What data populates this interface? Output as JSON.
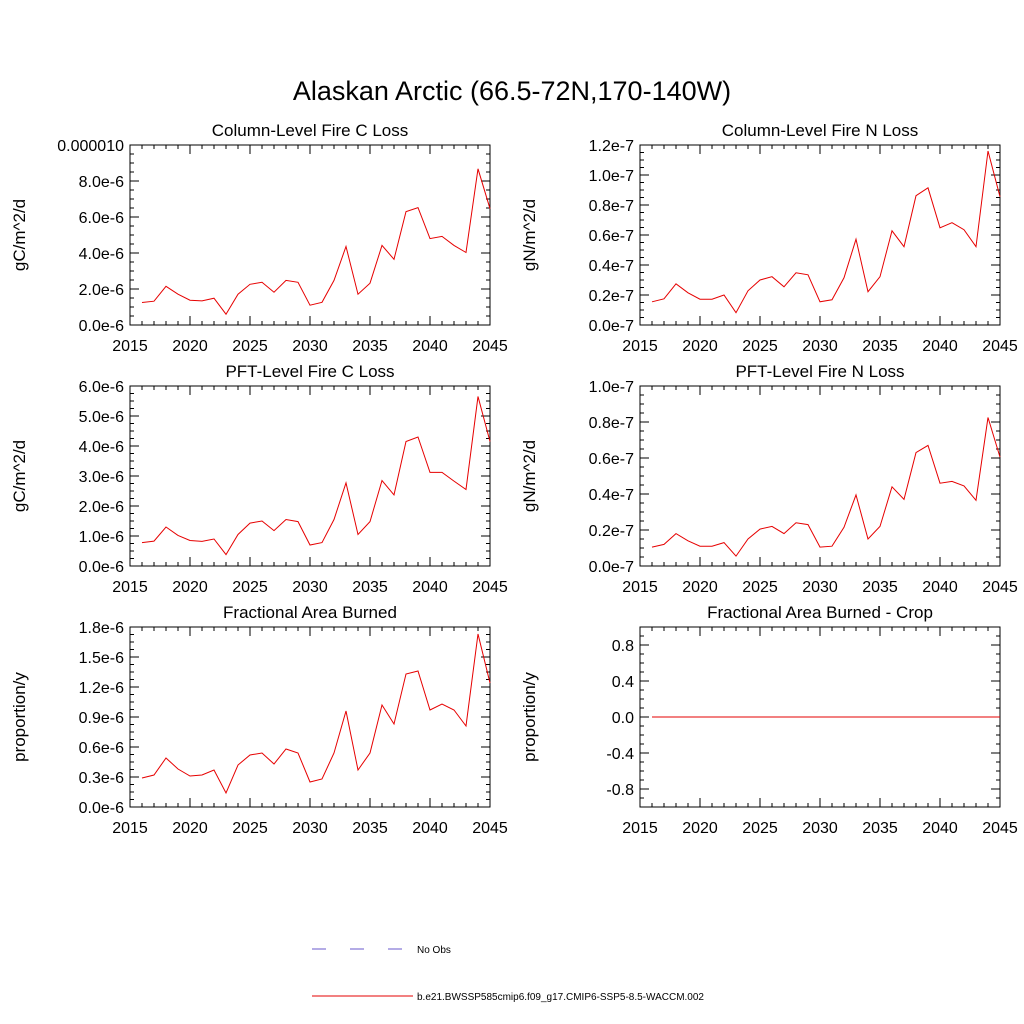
{
  "figure_title": "Alaskan Arctic (66.5-72N,170-140W)",
  "colors": {
    "model_line": "#e60000",
    "obs_line": "#6a5acd",
    "axis": "#000000"
  },
  "legend": {
    "obs_label": "No Obs",
    "model_label": "b.e21.BWSSP585cmip6.f09_g17.CMIP6-SSP5-8.5-WACCM.002"
  },
  "chart_data": [
    {
      "id": "col-c",
      "type": "line",
      "title": "Column-Level Fire C Loss",
      "ylabel": "gC/m^2/d",
      "xlim": [
        2015,
        2045
      ],
      "ylim": [
        0,
        1e-05
      ],
      "xticks": [
        2015,
        2020,
        2025,
        2030,
        2035,
        2040,
        2045
      ],
      "yticks": [
        0,
        2e-06,
        4e-06,
        6e-06,
        8e-06,
        1e-05
      ],
      "yticklabels": [
        "0.0e-6",
        "2.0e-6",
        "4.0e-6",
        "6.0e-6",
        "8.0e-6",
        "0.000010"
      ],
      "series": [
        {
          "name": "b.e21.BWSSP585cmip6.f09_g17.CMIP6-SSP5-8.5-WACCM.002",
          "x": [
            2016,
            2017,
            2018,
            2019,
            2020,
            2021,
            2022,
            2023,
            2024,
            2025,
            2026,
            2027,
            2028,
            2029,
            2030,
            2031,
            2032,
            2033,
            2034,
            2035,
            2036,
            2037,
            2038,
            2039,
            2040,
            2041,
            2042,
            2043,
            2044,
            2045
          ],
          "y": [
            1.25e-06,
            1.32e-06,
            2.15e-06,
            1.71e-06,
            1.38e-06,
            1.34e-06,
            1.49e-06,
            6e-07,
            1.71e-06,
            2.26e-06,
            2.37e-06,
            1.82e-06,
            2.48e-06,
            2.37e-06,
            1.1e-06,
            1.26e-06,
            2.48e-06,
            4.36e-06,
            1.71e-06,
            2.32e-06,
            4.42e-06,
            3.65e-06,
            6.3e-06,
            6.52e-06,
            4.8e-06,
            4.92e-06,
            4.42e-06,
            4.03e-06,
            8.68e-06,
            6.46e-06
          ]
        }
      ]
    },
    {
      "id": "col-n",
      "type": "line",
      "title": "Column-Level Fire N Loss",
      "ylabel": "gN/m^2/d",
      "xlim": [
        2015,
        2045
      ],
      "ylim": [
        0,
        1.2e-07
      ],
      "xticks": [
        2015,
        2020,
        2025,
        2030,
        2035,
        2040,
        2045
      ],
      "yticks": [
        0,
        2e-08,
        4e-08,
        6e-08,
        8e-08,
        1e-07,
        1.2e-07
      ],
      "yticklabels": [
        "0.0e-7",
        "0.2e-7",
        "0.4e-7",
        "0.6e-7",
        "0.8e-7",
        "1.0e-7",
        "1.2e-7"
      ],
      "series": [
        {
          "name": "b.e21.BWSSP585cmip6.f09_g17.CMIP6-SSP5-8.5-WACCM.002",
          "x": [
            2016,
            2017,
            2018,
            2019,
            2020,
            2021,
            2022,
            2023,
            2024,
            2025,
            2026,
            2027,
            2028,
            2029,
            2030,
            2031,
            2032,
            2033,
            2034,
            2035,
            2036,
            2037,
            2038,
            2039,
            2040,
            2041,
            2042,
            2043,
            2044,
            2045
          ],
          "y": [
            1.55e-08,
            1.75e-08,
            2.75e-08,
            2.15e-08,
            1.72e-08,
            1.72e-08,
            2e-08,
            8.2e-09,
            2.28e-08,
            3e-08,
            3.22e-08,
            2.55e-08,
            3.48e-08,
            3.35e-08,
            1.55e-08,
            1.68e-08,
            3.15e-08,
            5.72e-08,
            2.22e-08,
            3.22e-08,
            6.28e-08,
            5.22e-08,
            8.62e-08,
            9.15e-08,
            6.48e-08,
            6.82e-08,
            6.35e-08,
            5.22e-08,
            1.16e-07,
            8.55e-08
          ]
        }
      ]
    },
    {
      "id": "pft-c",
      "type": "line",
      "title": "PFT-Level Fire C Loss",
      "ylabel": "gC/m^2/d",
      "xlim": [
        2015,
        2045
      ],
      "ylim": [
        0,
        6e-06
      ],
      "xticks": [
        2015,
        2020,
        2025,
        2030,
        2035,
        2040,
        2045
      ],
      "yticks": [
        0,
        1e-06,
        2e-06,
        3e-06,
        4e-06,
        5e-06,
        6e-06
      ],
      "yticklabels": [
        "0.0e-6",
        "1.0e-6",
        "2.0e-6",
        "3.0e-6",
        "4.0e-6",
        "5.0e-6",
        "6.0e-6"
      ],
      "series": [
        {
          "name": "b.e21.BWSSP585cmip6.f09_g17.CMIP6-SSP5-8.5-WACCM.002",
          "x": [
            2016,
            2017,
            2018,
            2019,
            2020,
            2021,
            2022,
            2023,
            2024,
            2025,
            2026,
            2027,
            2028,
            2029,
            2030,
            2031,
            2032,
            2033,
            2034,
            2035,
            2036,
            2037,
            2038,
            2039,
            2040,
            2041,
            2042,
            2043,
            2044,
            2045
          ],
          "y": [
            7.8e-07,
            8.3e-07,
            1.3e-06,
            1.02e-06,
            8.5e-07,
            8.2e-07,
            9e-07,
            3.8e-07,
            1.05e-06,
            1.43e-06,
            1.5e-06,
            1.18e-06,
            1.55e-06,
            1.48e-06,
            7e-07,
            7.8e-07,
            1.55e-06,
            2.77e-06,
            1.05e-06,
            1.48e-06,
            2.85e-06,
            2.37e-06,
            4.15e-06,
            4.3e-06,
            3.12e-06,
            3.12e-06,
            2.83e-06,
            2.55e-06,
            5.65e-06,
            4.15e-06
          ]
        }
      ]
    },
    {
      "id": "pft-n",
      "type": "line",
      "title": "PFT-Level Fire N Loss",
      "ylabel": "gN/m^2/d",
      "xlim": [
        2015,
        2045
      ],
      "ylim": [
        0,
        1e-07
      ],
      "xticks": [
        2015,
        2020,
        2025,
        2030,
        2035,
        2040,
        2045
      ],
      "yticks": [
        0,
        2e-08,
        4e-08,
        6e-08,
        8e-08,
        1e-07
      ],
      "yticklabels": [
        "0.0e-7",
        "0.2e-7",
        "0.4e-7",
        "0.6e-7",
        "0.8e-7",
        "1.0e-7"
      ],
      "series": [
        {
          "name": "b.e21.BWSSP585cmip6.f09_g17.CMIP6-SSP5-8.5-WACCM.002",
          "x": [
            2016,
            2017,
            2018,
            2019,
            2020,
            2021,
            2022,
            2023,
            2024,
            2025,
            2026,
            2027,
            2028,
            2029,
            2030,
            2031,
            2032,
            2033,
            2034,
            2035,
            2036,
            2037,
            2038,
            2039,
            2040,
            2041,
            2042,
            2043,
            2044,
            2045
          ],
          "y": [
            1.05e-08,
            1.2e-08,
            1.8e-08,
            1.4e-08,
            1.1e-08,
            1.1e-08,
            1.3e-08,
            5.5e-09,
            1.5e-08,
            2.05e-08,
            2.2e-08,
            1.8e-08,
            2.4e-08,
            2.3e-08,
            1.05e-08,
            1.1e-08,
            2.15e-08,
            3.95e-08,
            1.5e-08,
            2.2e-08,
            4.4e-08,
            3.7e-08,
            6.3e-08,
            6.7e-08,
            4.6e-08,
            4.7e-08,
            4.45e-08,
            3.65e-08,
            8.25e-08,
            6.05e-08
          ]
        }
      ]
    },
    {
      "id": "frac-area",
      "type": "line",
      "title": "Fractional Area Burned",
      "ylabel": "proportion/y",
      "xlim": [
        2015,
        2045
      ],
      "ylim": [
        0,
        1.8e-06
      ],
      "xticks": [
        2015,
        2020,
        2025,
        2030,
        2035,
        2040,
        2045
      ],
      "yticks": [
        0,
        3e-07,
        6e-07,
        9e-07,
        1.2e-06,
        1.5e-06,
        1.8e-06
      ],
      "yticklabels": [
        "0.0e-6",
        "0.3e-6",
        "0.6e-6",
        "0.9e-6",
        "1.2e-6",
        "1.5e-6",
        "1.8e-6"
      ],
      "series": [
        {
          "name": "b.e21.BWSSP585cmip6.f09_g17.CMIP6-SSP5-8.5-WACCM.002",
          "x": [
            2016,
            2017,
            2018,
            2019,
            2020,
            2021,
            2022,
            2023,
            2024,
            2025,
            2026,
            2027,
            2028,
            2029,
            2030,
            2031,
            2032,
            2033,
            2034,
            2035,
            2036,
            2037,
            2038,
            2039,
            2040,
            2041,
            2042,
            2043,
            2044,
            2045
          ],
          "y": [
            2.9e-07,
            3.2e-07,
            4.9e-07,
            3.8e-07,
            3.1e-07,
            3.2e-07,
            3.7e-07,
            1.4e-07,
            4.2e-07,
            5.2e-07,
            5.4e-07,
            4.3e-07,
            5.8e-07,
            5.4e-07,
            2.5e-07,
            2.8e-07,
            5.4e-07,
            9.6e-07,
            3.7e-07,
            5.4e-07,
            1.02e-06,
            8.3e-07,
            1.33e-06,
            1.36e-06,
            9.7e-07,
            1.03e-06,
            9.7e-07,
            8.1e-07,
            1.73e-06,
            1.24e-06
          ]
        }
      ]
    },
    {
      "id": "frac-area-crop",
      "type": "line",
      "title": "Fractional Area Burned - Crop",
      "ylabel": "proportion/y",
      "xlim": [
        2015,
        2045
      ],
      "ylim": [
        -1,
        1
      ],
      "xticks": [
        2015,
        2020,
        2025,
        2030,
        2035,
        2040,
        2045
      ],
      "yticks": [
        -0.8,
        -0.4,
        0,
        0.4,
        0.8
      ],
      "yticklabels": [
        "-0.8",
        "-0.4",
        "0.0",
        "0.4",
        "0.8"
      ],
      "series": [
        {
          "name": "b.e21.BWSSP585cmip6.f09_g17.CMIP6-SSP5-8.5-WACCM.002",
          "x": [
            2016,
            2017,
            2018,
            2019,
            2020,
            2021,
            2022,
            2023,
            2024,
            2025,
            2026,
            2027,
            2028,
            2029,
            2030,
            2031,
            2032,
            2033,
            2034,
            2035,
            2036,
            2037,
            2038,
            2039,
            2040,
            2041,
            2042,
            2043,
            2044,
            2045
          ],
          "y": [
            0,
            0,
            0,
            0,
            0,
            0,
            0,
            0,
            0,
            0,
            0,
            0,
            0,
            0,
            0,
            0,
            0,
            0,
            0,
            0,
            0,
            0,
            0,
            0,
            0,
            0,
            0,
            0,
            0,
            0
          ]
        }
      ]
    }
  ]
}
